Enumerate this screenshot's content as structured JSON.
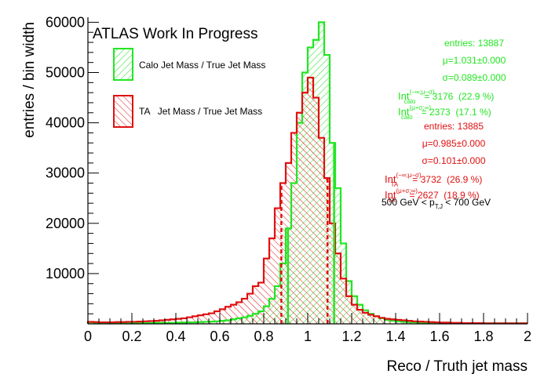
{
  "colors": {
    "calo": "#22e622",
    "ta": "#e01010",
    "axis": "#000000"
  },
  "chart_data": {
    "type": "histogram",
    "title": "ATLAS Work In Progress",
    "xlabel": "Reco / Truth jet mass",
    "ylabel": "entries / bin width",
    "xlim": [
      0,
      2
    ],
    "ylim": [
      0,
      61000
    ],
    "grid": false,
    "legend_placement": "top-left",
    "x_ticks": [
      "0",
      "0.2",
      "0.4",
      "0.6",
      "0.8",
      "1",
      "1.2",
      "1.4",
      "1.6",
      "1.8",
      "2"
    ],
    "y_ticks": [
      "10000",
      "20000",
      "30000",
      "40000",
      "50000",
      "60000"
    ],
    "bin_width": 0.025,
    "series": [
      {
        "name": "Calo Jet Mass / True Jet Mass",
        "key": "calo",
        "bin_starts": [
          0.0,
          0.025,
          0.05,
          0.075,
          0.1,
          0.125,
          0.15,
          0.175,
          0.2,
          0.225,
          0.25,
          0.275,
          0.3,
          0.325,
          0.35,
          0.375,
          0.4,
          0.425,
          0.45,
          0.475,
          0.5,
          0.525,
          0.55,
          0.575,
          0.6,
          0.625,
          0.65,
          0.675,
          0.7,
          0.725,
          0.75,
          0.775,
          0.8,
          0.825,
          0.85,
          0.875,
          0.9,
          0.925,
          0.95,
          0.975,
          1.0,
          1.025,
          1.05,
          1.075,
          1.1,
          1.125,
          1.15,
          1.175,
          1.2,
          1.225,
          1.25,
          1.275,
          1.3,
          1.325,
          1.35,
          1.375,
          1.4,
          1.425,
          1.45,
          1.475,
          1.5,
          1.525,
          1.55,
          1.575,
          1.6,
          1.625,
          1.65,
          1.675,
          1.7,
          1.725,
          1.75,
          1.775,
          1.8,
          1.825,
          1.85,
          1.875,
          1.9,
          1.925,
          1.95,
          1.975
        ],
        "values": [
          300,
          250,
          200,
          200,
          150,
          150,
          150,
          150,
          150,
          150,
          150,
          150,
          200,
          200,
          200,
          200,
          250,
          250,
          300,
          300,
          350,
          400,
          450,
          500,
          600,
          700,
          900,
          1100,
          1300,
          1600,
          2000,
          2500,
          3500,
          5000,
          7500,
          12000,
          19000,
          28000,
          40000,
          50000,
          55000,
          56500,
          60000,
          53500,
          36000,
          27000,
          16000,
          8500,
          5500,
          3800,
          2700,
          2000,
          1500,
          1100,
          800,
          600,
          500,
          400,
          350,
          300,
          250,
          200,
          200,
          150,
          150,
          150,
          150,
          100,
          100,
          100,
          100,
          100,
          100,
          100,
          100,
          100,
          100,
          100,
          100,
          100
        ]
      },
      {
        "name": "TA   Jet Mass / True Jet Mass",
        "key": "ta",
        "bin_starts": [
          0.0,
          0.025,
          0.05,
          0.075,
          0.1,
          0.125,
          0.15,
          0.175,
          0.2,
          0.225,
          0.25,
          0.275,
          0.3,
          0.325,
          0.35,
          0.375,
          0.4,
          0.425,
          0.45,
          0.475,
          0.5,
          0.525,
          0.55,
          0.575,
          0.6,
          0.625,
          0.65,
          0.675,
          0.7,
          0.725,
          0.75,
          0.775,
          0.8,
          0.825,
          0.85,
          0.875,
          0.9,
          0.925,
          0.95,
          0.975,
          1.0,
          1.025,
          1.05,
          1.075,
          1.1,
          1.125,
          1.15,
          1.175,
          1.2,
          1.225,
          1.25,
          1.275,
          1.3,
          1.325,
          1.35,
          1.375,
          1.4,
          1.425,
          1.45,
          1.475,
          1.5,
          1.525,
          1.55,
          1.575,
          1.6,
          1.625,
          1.65,
          1.675,
          1.7,
          1.725,
          1.75,
          1.775,
          1.8,
          1.825,
          1.85,
          1.875,
          1.9,
          1.925,
          1.95,
          1.975
        ],
        "values": [
          400,
          350,
          300,
          300,
          300,
          350,
          350,
          400,
          400,
          450,
          500,
          550,
          600,
          700,
          800,
          900,
          1000,
          1100,
          1300,
          1500,
          1700,
          1900,
          2100,
          2500,
          2900,
          3400,
          3800,
          4300,
          5000,
          6000,
          7500,
          8200,
          13000,
          17000,
          23000,
          28000,
          32000,
          38000,
          42000,
          46000,
          49000,
          45000,
          37000,
          29000,
          20000,
          14000,
          9000,
          5500,
          3800,
          2800,
          2200,
          1800,
          1500,
          1200,
          1000,
          900,
          800,
          700,
          600,
          500,
          450,
          400,
          350,
          300,
          250,
          250,
          200,
          200,
          150,
          150,
          150,
          150,
          100,
          100,
          100,
          100,
          100,
          100,
          100,
          100
        ]
      }
    ],
    "fit_intervals": {
      "calo": [
        0.91,
        1.12
      ],
      "ta": [
        0.88,
        1.09
      ]
    },
    "stats": {
      "calo": {
        "entries": "entries: 13887",
        "mu": "μ=1.031±0.000",
        "sigma": "σ=0.089±0.000",
        "int_low_val": "= 3176  (22.9 %)",
        "int_high_val": "= 2373  (17.1 %)"
      },
      "ta": {
        "entries": "entries: 13885",
        "mu": "μ=0.985±0.000",
        "sigma": "σ=0.101±0.000",
        "int_low_val": "= 3732  (26.9 %)",
        "int_high_val": "= 2627  (18.9 %)"
      },
      "int_prefix": "Int",
      "sup_low": "(−∞;μ−σ)",
      "sup_high": "(μ+σ;∞)",
      "sub_calo": "calo",
      "sub_ta": "TA",
      "range_label": "500 GeV < p",
      "range_sub": "T,J",
      "range_suffix": " < 700 GeV"
    }
  }
}
